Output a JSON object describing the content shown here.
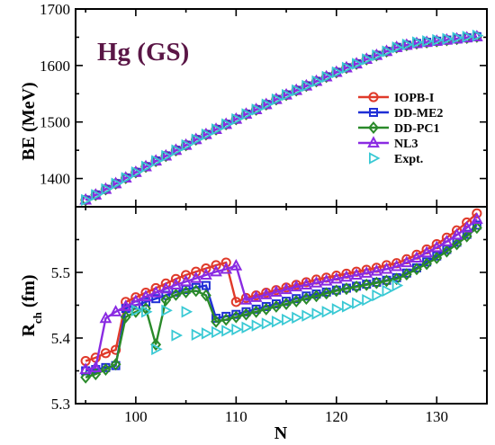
{
  "chart_data": [
    {
      "type": "line",
      "panel": "top",
      "annotation": "Hg (GS)",
      "annotation_color": "#5a1646",
      "ylabel": "BE (MeV)",
      "xlabel": "",
      "xlim": [
        94,
        135
      ],
      "ylim": [
        1350,
        1700
      ],
      "yticks": [
        1400,
        1500,
        1600,
        1700
      ],
      "ytick_labels": [
        "1400",
        "1500",
        "1600",
        "1700"
      ],
      "xticks": [
        100,
        110,
        120,
        130
      ],
      "grid": false,
      "legend_position": "lower-right",
      "series": [
        {
          "name": "IOPB-I",
          "color": "#e03a2a",
          "marker": "circle",
          "x": [
            95,
            96,
            97,
            98,
            99,
            100,
            101,
            102,
            103,
            104,
            105,
            106,
            107,
            108,
            109,
            110,
            111,
            112,
            113,
            114,
            115,
            116,
            117,
            118,
            119,
            120,
            121,
            122,
            123,
            124,
            125,
            126,
            127,
            128,
            129,
            130,
            131,
            132,
            133,
            134
          ],
          "values": [
            1362,
            1371,
            1381,
            1391,
            1401,
            1411,
            1421,
            1431,
            1440,
            1450,
            1459,
            1469,
            1478,
            1487,
            1496,
            1505,
            1514,
            1522,
            1531,
            1540,
            1548,
            1556,
            1564,
            1572,
            1580,
            1588,
            1596,
            1603,
            1611,
            1618,
            1625,
            1632,
            1636,
            1639,
            1641,
            1643,
            1645,
            1647,
            1649,
            1651
          ]
        },
        {
          "name": "DD-ME2",
          "color": "#1f2fd6",
          "marker": "square",
          "x": [
            95,
            96,
            97,
            98,
            99,
            100,
            101,
            102,
            103,
            104,
            105,
            106,
            107,
            108,
            109,
            110,
            111,
            112,
            113,
            114,
            115,
            116,
            117,
            118,
            119,
            120,
            121,
            122,
            123,
            124,
            125,
            126,
            127,
            128,
            129,
            130,
            131,
            132,
            133,
            134
          ],
          "values": [
            1362,
            1371,
            1381,
            1391,
            1401,
            1411,
            1421,
            1431,
            1440,
            1450,
            1459,
            1469,
            1478,
            1487,
            1496,
            1505,
            1514,
            1522,
            1531,
            1540,
            1548,
            1556,
            1564,
            1572,
            1580,
            1588,
            1596,
            1603,
            1611,
            1618,
            1625,
            1632,
            1636,
            1639,
            1641,
            1643,
            1645,
            1647,
            1649,
            1651
          ]
        },
        {
          "name": "DD-PC1",
          "color": "#2a8a2a",
          "marker": "diamond",
          "x": [
            95,
            96,
            97,
            98,
            99,
            100,
            101,
            102,
            103,
            104,
            105,
            106,
            107,
            108,
            109,
            110,
            111,
            112,
            113,
            114,
            115,
            116,
            117,
            118,
            119,
            120,
            121,
            122,
            123,
            124,
            125,
            126,
            127,
            128,
            129,
            130,
            131,
            132,
            133,
            134
          ],
          "values": [
            1362,
            1371,
            1381,
            1391,
            1401,
            1411,
            1421,
            1431,
            1440,
            1450,
            1459,
            1469,
            1478,
            1487,
            1496,
            1505,
            1514,
            1522,
            1531,
            1540,
            1548,
            1556,
            1564,
            1572,
            1580,
            1588,
            1596,
            1603,
            1611,
            1618,
            1625,
            1632,
            1636,
            1639,
            1641,
            1643,
            1645,
            1647,
            1649,
            1651
          ]
        },
        {
          "name": "NL3",
          "color": "#8a2be2",
          "marker": "triangle-up",
          "x": [
            95,
            96,
            97,
            98,
            99,
            100,
            101,
            102,
            103,
            104,
            105,
            106,
            107,
            108,
            109,
            110,
            111,
            112,
            113,
            114,
            115,
            116,
            117,
            118,
            119,
            120,
            121,
            122,
            123,
            124,
            125,
            126,
            127,
            128,
            129,
            130,
            131,
            132,
            133,
            134
          ],
          "values": [
            1362,
            1371,
            1381,
            1391,
            1401,
            1411,
            1421,
            1431,
            1440,
            1450,
            1459,
            1469,
            1478,
            1487,
            1496,
            1505,
            1514,
            1522,
            1531,
            1540,
            1548,
            1556,
            1564,
            1572,
            1580,
            1588,
            1596,
            1603,
            1611,
            1618,
            1625,
            1632,
            1636,
            1639,
            1641,
            1643,
            1645,
            1647,
            1649,
            1651
          ]
        },
        {
          "name": "Expt.",
          "color": "#39c9d4",
          "marker": "triangle-right",
          "line": false,
          "x": [
            95,
            96,
            97,
            98,
            99,
            100,
            101,
            102,
            103,
            104,
            105,
            106,
            107,
            108,
            109,
            110,
            111,
            112,
            113,
            114,
            115,
            116,
            117,
            118,
            119,
            120,
            121,
            122,
            123,
            124,
            125,
            126,
            127,
            128,
            129,
            130,
            131,
            132,
            133,
            134
          ],
          "values": [
            1362,
            1371,
            1381,
            1391,
            1401,
            1411,
            1421,
            1431,
            1440,
            1450,
            1459,
            1469,
            1478,
            1487,
            1496,
            1505,
            1514,
            1522,
            1531,
            1540,
            1548,
            1556,
            1564,
            1572,
            1580,
            1588,
            1596,
            1603,
            1611,
            1618,
            1625,
            1632,
            1637,
            1641,
            1643,
            1645,
            1647,
            1649,
            1651,
            1653
          ]
        }
      ]
    },
    {
      "type": "line",
      "panel": "bottom",
      "ylabel": "R_ch (fm)",
      "ylabel_main": "R",
      "ylabel_sub": "ch",
      "ylabel_unit": " (fm)",
      "xlabel": "N",
      "xlim": [
        94,
        135
      ],
      "ylim": [
        5.3,
        5.6
      ],
      "yticks": [
        5.3,
        5.4,
        5.5
      ],
      "ytick_labels": [
        "5.3",
        "5.4",
        "5.5"
      ],
      "xticks": [
        100,
        110,
        120,
        130
      ],
      "xtick_labels": [
        "100",
        "110",
        "120",
        "130"
      ],
      "grid": false,
      "series": [
        {
          "name": "IOPB-I",
          "color": "#e03a2a",
          "marker": "circle",
          "x": [
            95,
            96,
            97,
            98,
            99,
            100,
            101,
            102,
            103,
            104,
            105,
            106,
            107,
            108,
            109,
            110,
            111,
            112,
            113,
            114,
            115,
            116,
            117,
            118,
            119,
            120,
            121,
            122,
            123,
            124,
            125,
            126,
            127,
            128,
            129,
            130,
            131,
            132,
            133,
            134
          ],
          "values": [
            5.365,
            5.37,
            5.377,
            5.382,
            5.455,
            5.462,
            5.469,
            5.476,
            5.483,
            5.49,
            5.496,
            5.501,
            5.506,
            5.511,
            5.515,
            5.455,
            5.461,
            5.465,
            5.469,
            5.473,
            5.477,
            5.481,
            5.485,
            5.489,
            5.492,
            5.495,
            5.498,
            5.501,
            5.504,
            5.507,
            5.511,
            5.514,
            5.52,
            5.527,
            5.535,
            5.543,
            5.553,
            5.564,
            5.576,
            5.59
          ]
        },
        {
          "name": "DD-ME2",
          "color": "#1f2fd6",
          "marker": "square",
          "x": [
            95,
            96,
            97,
            98,
            99,
            100,
            101,
            102,
            103,
            104,
            105,
            106,
            107,
            108,
            109,
            110,
            111,
            112,
            113,
            114,
            115,
            116,
            117,
            118,
            119,
            120,
            121,
            122,
            123,
            124,
            125,
            126,
            127,
            128,
            129,
            130,
            131,
            132,
            133,
            134
          ],
          "values": [
            5.35,
            5.352,
            5.355,
            5.358,
            5.445,
            5.45,
            5.455,
            5.46,
            5.465,
            5.47,
            5.474,
            5.477,
            5.48,
            5.43,
            5.433,
            5.436,
            5.44,
            5.444,
            5.448,
            5.452,
            5.456,
            5.46,
            5.464,
            5.467,
            5.47,
            5.473,
            5.476,
            5.479,
            5.482,
            5.485,
            5.488,
            5.492,
            5.499,
            5.507,
            5.516,
            5.525,
            5.535,
            5.546,
            5.558,
            5.572
          ]
        },
        {
          "name": "DD-PC1",
          "color": "#2a8a2a",
          "marker": "diamond",
          "x": [
            95,
            96,
            97,
            98,
            99,
            100,
            101,
            102,
            103,
            104,
            105,
            106,
            107,
            108,
            109,
            110,
            111,
            112,
            113,
            114,
            115,
            116,
            117,
            118,
            119,
            120,
            121,
            122,
            123,
            124,
            125,
            126,
            127,
            128,
            129,
            130,
            131,
            132,
            133,
            134
          ],
          "values": [
            5.34,
            5.345,
            5.352,
            5.36,
            5.432,
            5.44,
            5.445,
            5.39,
            5.458,
            5.466,
            5.47,
            5.472,
            5.465,
            5.425,
            5.428,
            5.432,
            5.436,
            5.44,
            5.444,
            5.448,
            5.452,
            5.456,
            5.46,
            5.464,
            5.468,
            5.472,
            5.475,
            5.478,
            5.481,
            5.484,
            5.487,
            5.49,
            5.497,
            5.505,
            5.513,
            5.522,
            5.532,
            5.543,
            5.555,
            5.568
          ]
        },
        {
          "name": "NL3",
          "color": "#8a2be2",
          "marker": "triangle-up",
          "x": [
            95,
            96,
            97,
            98,
            99,
            100,
            101,
            102,
            103,
            104,
            105,
            106,
            107,
            108,
            109,
            110,
            111,
            112,
            113,
            114,
            115,
            116,
            117,
            118,
            119,
            120,
            121,
            122,
            123,
            124,
            125,
            126,
            127,
            128,
            129,
            130,
            131,
            132,
            133,
            134
          ],
          "values": [
            5.352,
            5.355,
            5.43,
            5.44,
            5.448,
            5.456,
            5.463,
            5.469,
            5.475,
            5.481,
            5.486,
            5.491,
            5.496,
            5.501,
            5.505,
            5.51,
            5.458,
            5.462,
            5.466,
            5.47,
            5.474,
            5.478,
            5.481,
            5.484,
            5.487,
            5.49,
            5.493,
            5.496,
            5.499,
            5.502,
            5.505,
            5.509,
            5.515,
            5.522,
            5.53,
            5.538,
            5.547,
            5.557,
            5.568,
            5.581
          ]
        },
        {
          "name": "Expt.",
          "color": "#39c9d4",
          "marker": "triangle-right",
          "line": false,
          "x": [
            100,
            101,
            102,
            103,
            104,
            105,
            106,
            107,
            108,
            109,
            110,
            111,
            112,
            113,
            114,
            115,
            116,
            117,
            118,
            119,
            120,
            121,
            122,
            123,
            124,
            125,
            126
          ],
          "values": [
            5.442,
            5.44,
            5.383,
            5.442,
            5.404,
            5.44,
            5.405,
            5.407,
            5.409,
            5.411,
            5.413,
            5.416,
            5.419,
            5.422,
            5.425,
            5.428,
            5.431,
            5.434,
            5.437,
            5.44,
            5.444,
            5.448,
            5.453,
            5.458,
            5.465,
            5.472,
            5.48
          ]
        }
      ]
    }
  ]
}
